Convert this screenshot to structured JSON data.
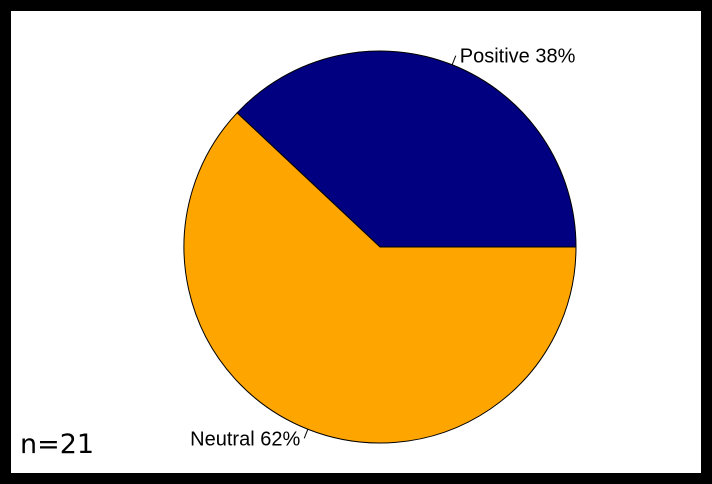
{
  "chart_data": {
    "type": "pie",
    "categories": [
      "Positive",
      "Neutral"
    ],
    "values": [
      38,
      62
    ],
    "labels": [
      "Positive 38%",
      "Neutral 62%"
    ],
    "colors": [
      "#000080",
      "#FFA500"
    ],
    "annotation": "n=21"
  }
}
